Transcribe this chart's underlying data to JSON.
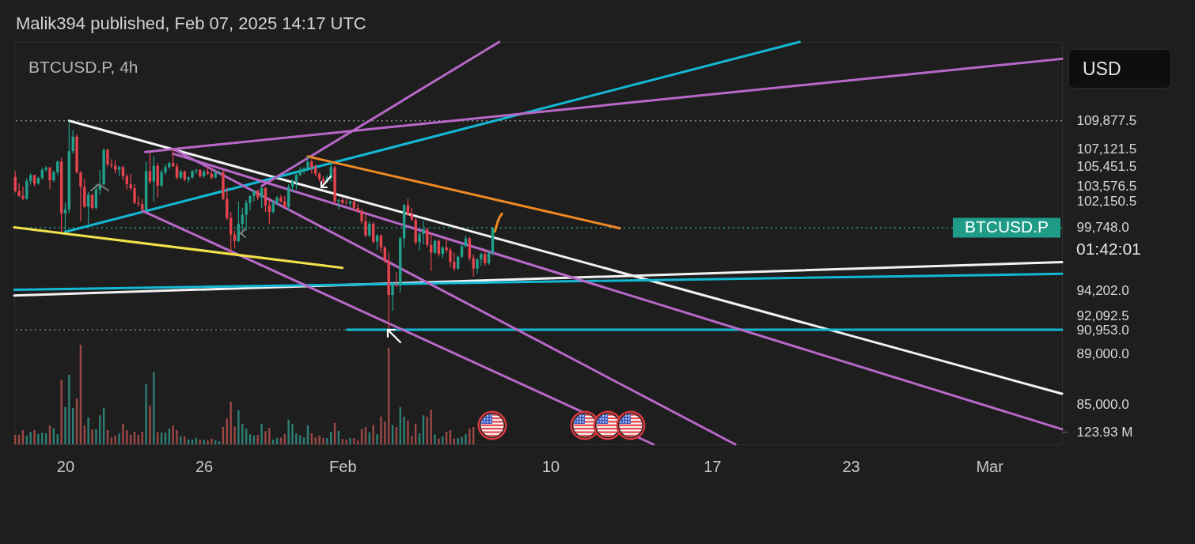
{
  "chart_data": {
    "type": "candlestick",
    "title": "BTCUSD.P, 4h",
    "annotations": [
      "Malik394 published, Feb 07, 2025 14:17 UTC",
      "USD",
      "01:42:01"
    ],
    "x": [
      "2025-01-17T20:00",
      "2025-01-18T00:00",
      "2025-01-18T04:00",
      "2025-01-18T08:00",
      "2025-01-18T12:00",
      "2025-01-18T16:00",
      "2025-01-18T20:00",
      "2025-01-19T00:00",
      "2025-01-19T04:00",
      "2025-01-19T08:00",
      "2025-01-19T12:00",
      "2025-01-19T16:00",
      "2025-01-19T20:00",
      "2025-01-20T00:00",
      "2025-01-20T04:00",
      "2025-01-20T08:00",
      "2025-01-20T12:00",
      "2025-01-20T16:00",
      "2025-01-20T20:00",
      "2025-01-21T00:00",
      "2025-01-21T04:00",
      "2025-01-21T08:00",
      "2025-01-21T12:00",
      "2025-01-21T16:00",
      "2025-01-21T20:00",
      "2025-01-22T00:00",
      "2025-01-22T04:00",
      "2025-01-22T08:00",
      "2025-01-22T12:00",
      "2025-01-22T16:00",
      "2025-01-22T20:00",
      "2025-01-23T00:00",
      "2025-01-23T04:00",
      "2025-01-23T08:00",
      "2025-01-23T12:00",
      "2025-01-23T16:00",
      "2025-01-23T20:00",
      "2025-01-24T00:00",
      "2025-01-24T04:00",
      "2025-01-24T08:00",
      "2025-01-24T12:00",
      "2025-01-24T16:00",
      "2025-01-24T20:00",
      "2025-01-25T00:00",
      "2025-01-25T04:00",
      "2025-01-25T08:00",
      "2025-01-25T12:00",
      "2025-01-25T16:00",
      "2025-01-25T20:00",
      "2025-01-26T00:00",
      "2025-01-26T04:00",
      "2025-01-26T08:00",
      "2025-01-26T12:00",
      "2025-01-26T16:00",
      "2025-01-26T20:00",
      "2025-01-27T00:00",
      "2025-01-27T04:00",
      "2025-01-27T08:00",
      "2025-01-27T12:00",
      "2025-01-27T16:00",
      "2025-01-27T20:00",
      "2025-01-28T00:00",
      "2025-01-28T04:00",
      "2025-01-28T08:00",
      "2025-01-28T12:00",
      "2025-01-28T16:00",
      "2025-01-28T20:00",
      "2025-01-29T00:00",
      "2025-01-29T04:00",
      "2025-01-29T08:00",
      "2025-01-29T12:00",
      "2025-01-29T16:00",
      "2025-01-29T20:00",
      "2025-01-30T00:00",
      "2025-01-30T04:00",
      "2025-01-30T08:00",
      "2025-01-30T12:00",
      "2025-01-30T16:00",
      "2025-01-30T20:00",
      "2025-01-31T00:00",
      "2025-01-31T04:00",
      "2025-01-31T08:00",
      "2025-01-31T12:00",
      "2025-01-31T16:00",
      "2025-01-31T20:00",
      "2025-02-01T00:00",
      "2025-02-01T04:00",
      "2025-02-01T08:00",
      "2025-02-01T12:00",
      "2025-02-01T16:00",
      "2025-02-01T20:00",
      "2025-02-02T00:00",
      "2025-02-02T04:00",
      "2025-02-02T08:00",
      "2025-02-02T12:00",
      "2025-02-02T16:00",
      "2025-02-02T20:00",
      "2025-02-03T00:00",
      "2025-02-03T04:00",
      "2025-02-03T08:00",
      "2025-02-03T12:00",
      "2025-02-03T16:00",
      "2025-02-03T20:00",
      "2025-02-04T00:00",
      "2025-02-04T04:00",
      "2025-02-04T08:00",
      "2025-02-04T12:00",
      "2025-02-04T16:00",
      "2025-02-04T20:00",
      "2025-02-05T00:00",
      "2025-02-05T04:00",
      "2025-02-05T08:00",
      "2025-02-05T12:00",
      "2025-02-05T16:00",
      "2025-02-05T20:00",
      "2025-02-06T00:00",
      "2025-02-06T04:00",
      "2025-02-06T08:00",
      "2025-02-06T12:00",
      "2025-02-06T16:00",
      "2025-02-06T20:00",
      "2025-02-07T00:00",
      "2025-02-07T04:00",
      "2025-02-07T08:00",
      "2025-02-07T12:00"
    ],
    "ohlc": [
      [
        104430,
        104980,
        102970,
        103130
      ],
      [
        103130,
        103860,
        102560,
        102650
      ],
      [
        102650,
        103540,
        102270,
        102400
      ],
      [
        102400,
        104330,
        102300,
        104050
      ],
      [
        104050,
        104770,
        103720,
        104600
      ],
      [
        104600,
        104650,
        103540,
        103800
      ],
      [
        103800,
        104470,
        103700,
        104350
      ],
      [
        104350,
        105320,
        104200,
        105100
      ],
      [
        105100,
        105460,
        104900,
        105300
      ],
      [
        105300,
        105400,
        103300,
        104120
      ],
      [
        104120,
        105040,
        103970,
        104900
      ],
      [
        104900,
        106000,
        104600,
        105880
      ],
      [
        105880,
        106260,
        99370,
        101050
      ],
      [
        101050,
        102020,
        99370,
        101420
      ],
      [
        101420,
        109877.5,
        101050,
        106900
      ],
      [
        106900,
        108960,
        106640,
        108310
      ],
      [
        108310,
        108570,
        104740,
        104870
      ],
      [
        104870,
        104990,
        100330,
        103500
      ],
      [
        103500,
        104250,
        101540,
        101660
      ],
      [
        101660,
        103010,
        100090,
        102760
      ],
      [
        102760,
        102880,
        101420,
        101540
      ],
      [
        101540,
        103750,
        101420,
        103250
      ],
      [
        103250,
        105120,
        102760,
        103750
      ],
      [
        103750,
        107150,
        103620,
        107020
      ],
      [
        107020,
        107150,
        105370,
        105630
      ],
      [
        105630,
        106130,
        105250,
        105500
      ],
      [
        105500,
        106010,
        104740,
        105120
      ],
      [
        105120,
        105500,
        104490,
        105370
      ],
      [
        105370,
        105500,
        104120,
        104490
      ],
      [
        104490,
        104740,
        103250,
        103750
      ],
      [
        103750,
        104740,
        103130,
        103380
      ],
      [
        103380,
        103750,
        101900,
        102020
      ],
      [
        102020,
        102640,
        101660,
        101900
      ],
      [
        101900,
        102390,
        101170,
        101420
      ],
      [
        101420,
        105880,
        101300,
        104990
      ],
      [
        104990,
        106770,
        103750,
        104000
      ],
      [
        104000,
        106390,
        102150,
        105500
      ],
      [
        105500,
        105750,
        102510,
        103620
      ],
      [
        103620,
        105120,
        103500,
        104870
      ],
      [
        104870,
        105630,
        104620,
        105370
      ],
      [
        105370,
        105880,
        105200,
        105750
      ],
      [
        105750,
        107121.5,
        105370,
        105450
      ],
      [
        105450,
        105750,
        104190,
        104370
      ],
      [
        104370,
        105120,
        104190,
        104950
      ],
      [
        104950,
        105050,
        104000,
        104190
      ],
      [
        104190,
        104490,
        103870,
        104370
      ],
      [
        104370,
        105120,
        104290,
        104990
      ],
      [
        104990,
        105200,
        104740,
        105090
      ],
      [
        105090,
        105200,
        104340,
        104490
      ],
      [
        104490,
        105120,
        104340,
        104940
      ],
      [
        104940,
        105370,
        104620,
        104740
      ],
      [
        104740,
        105250,
        104190,
        104370
      ],
      [
        104370,
        104990,
        104290,
        104840
      ],
      [
        104840,
        105040,
        104640,
        104890
      ],
      [
        104890,
        105040,
        102270,
        102390
      ],
      [
        102390,
        103500,
        100450,
        100620
      ],
      [
        100620,
        101170,
        97490,
        99140
      ],
      [
        99140,
        99490,
        97890,
        98540
      ],
      [
        98540,
        102150,
        98430,
        100090
      ],
      [
        100090,
        101540,
        99140,
        100930
      ],
      [
        100930,
        102270,
        99490,
        102020
      ],
      [
        102020,
        102760,
        101300,
        102640
      ],
      [
        102640,
        103250,
        102150,
        103130
      ],
      [
        103130,
        103250,
        102270,
        102510
      ],
      [
        102510,
        103576.5,
        101540,
        103380
      ],
      [
        103380,
        103500,
        101170,
        101780
      ],
      [
        101780,
        102390,
        100090,
        101170
      ],
      [
        101170,
        102270,
        101050,
        102020
      ],
      [
        102020,
        102640,
        101780,
        102510
      ],
      [
        102510,
        102760,
        102020,
        102150
      ],
      [
        102150,
        102640,
        101540,
        101660
      ],
      [
        101660,
        103750,
        101300,
        103500
      ],
      [
        103500,
        104240,
        103010,
        104000
      ],
      [
        104000,
        104740,
        103250,
        104620
      ],
      [
        104620,
        105370,
        104490,
        105120
      ],
      [
        105120,
        105370,
        104740,
        105250
      ],
      [
        105250,
        106390,
        104990,
        105880
      ],
      [
        105880,
        106130,
        104740,
        105370
      ],
      [
        105370,
        105630,
        104490,
        104740
      ],
      [
        104740,
        104870,
        104000,
        104240
      ],
      [
        104240,
        104490,
        103750,
        104000
      ],
      [
        104000,
        104620,
        103870,
        104370
      ],
      [
        104370,
        105880,
        104000,
        105370
      ],
      [
        105370,
        105500,
        101900,
        102150
      ],
      [
        102150,
        102390,
        101420,
        102270
      ],
      [
        102270,
        102510,
        101900,
        102020
      ],
      [
        102020,
        102390,
        101830,
        101970
      ],
      [
        101970,
        102240,
        101670,
        102140
      ],
      [
        102140,
        102240,
        101260,
        101550
      ],
      [
        101550,
        101920,
        101120,
        101260
      ],
      [
        101260,
        101430,
        100110,
        100350
      ],
      [
        100350,
        101070,
        98920,
        99040
      ],
      [
        99040,
        100350,
        98920,
        100110
      ],
      [
        100110,
        100230,
        98330,
        98500
      ],
      [
        98500,
        99200,
        97750,
        99040
      ],
      [
        99040,
        99160,
        97520,
        97980
      ],
      [
        97980,
        98100,
        96590,
        96820
      ],
      [
        96820,
        97520,
        90953,
        93860
      ],
      [
        93860,
        94990,
        92530,
        94760
      ],
      [
        94760,
        95790,
        94540,
        94650
      ],
      [
        94650,
        98920,
        94090,
        98800
      ],
      [
        98800,
        101920,
        97980,
        101800
      ],
      [
        101800,
        102410,
        100830,
        100950
      ],
      [
        100950,
        101550,
        100350,
        100470
      ],
      [
        100470,
        100590,
        98220,
        98450
      ],
      [
        98450,
        99400,
        97750,
        99160
      ],
      [
        99160,
        100350,
        98220,
        99630
      ],
      [
        99630,
        99750,
        97980,
        98220
      ],
      [
        98220,
        99280,
        95900,
        97520
      ],
      [
        97520,
        98690,
        97400,
        98570
      ],
      [
        98570,
        98690,
        97170,
        97400
      ],
      [
        97400,
        98100,
        97050,
        97980
      ],
      [
        97980,
        98800,
        97520,
        97750
      ],
      [
        97750,
        97980,
        96240,
        96700
      ],
      [
        96700,
        97520,
        95900,
        96130
      ],
      [
        96130,
        97280,
        96020,
        97170
      ],
      [
        97170,
        98330,
        97050,
        98100
      ],
      [
        98100,
        99040,
        97980,
        98800
      ],
      [
        98800,
        98920,
        96820,
        97050
      ],
      [
        97050,
        97400,
        95440,
        96130
      ],
      [
        96130,
        97050,
        95670,
        96930
      ],
      [
        96930,
        97520,
        96360,
        97400
      ],
      [
        97400,
        97750,
        96360,
        96590
      ],
      [
        96590,
        97630,
        96470,
        97520
      ],
      [
        97520,
        99800,
        97280,
        99748
      ]
    ],
    "colors": [
      "#e5444f",
      "#e5444f",
      "#e5444f",
      "#22a08c",
      "#22a08c",
      "#e5444f",
      "#22a08c",
      "#22a08c",
      "#22a08c",
      "#e5444f",
      "#22a08c",
      "#22a08c",
      "#e5444f",
      "#22a08c",
      "#22a08c",
      "#22a08c",
      "#e5444f",
      "#e5444f",
      "#e5444f",
      "#22a08c",
      "#e5444f",
      "#22a08c",
      "#22a08c",
      "#22a08c",
      "#e5444f",
      "#e5444f",
      "#e5444f",
      "#22a08c",
      "#e5444f",
      "#e5444f",
      "#e5444f",
      "#e5444f",
      "#e5444f",
      "#e5444f",
      "#22a08c",
      "#e5444f",
      "#22a08c",
      "#e5444f",
      "#22a08c",
      "#22a08c",
      "#22a08c",
      "#e5444f",
      "#e5444f",
      "#22a08c",
      "#e5444f",
      "#22a08c",
      "#22a08c",
      "#22a08c",
      "#e5444f",
      "#22a08c",
      "#e5444f",
      "#e5444f",
      "#22a08c",
      "#22a08c",
      "#e5444f",
      "#e5444f",
      "#e5444f",
      "#e5444f",
      "#22a08c",
      "#22a08c",
      "#22a08c",
      "#22a08c",
      "#22a08c",
      "#e5444f",
      "#22a08c",
      "#e5444f",
      "#e5444f",
      "#22a08c",
      "#22a08c",
      "#e5444f",
      "#e5444f",
      "#22a08c",
      "#22a08c",
      "#22a08c",
      "#22a08c",
      "#22a08c",
      "#22a08c",
      "#e5444f",
      "#e5444f",
      "#e5444f",
      "#e5444f",
      "#22a08c",
      "#22a08c",
      "#e5444f",
      "#22a08c",
      "#e5444f",
      "#e5444f",
      "#22a08c",
      "#e5444f",
      "#e5444f",
      "#e5444f",
      "#e5444f",
      "#22a08c",
      "#e5444f",
      "#22a08c",
      "#e5444f",
      "#e5444f",
      "#e5444f",
      "#22a08c",
      "#e5444f",
      "#22a08c",
      "#22a08c",
      "#e5444f",
      "#e5444f",
      "#e5444f",
      "#22a08c",
      "#22a08c",
      "#e5444f",
      "#e5444f",
      "#22a08c",
      "#e5444f",
      "#22a08c",
      "#e5444f",
      "#e5444f",
      "#e5444f",
      "#22a08c",
      "#22a08c",
      "#22a08c",
      "#e5444f",
      "#e5444f",
      "#22a08c",
      "#22a08c",
      "#e5444f",
      "#22a08c",
      "#22a08c"
    ],
    "series": [
      {
        "type": "bar",
        "axis": "y2",
        "values": [
          93,
          93,
          140,
          87,
          124,
          140,
          102,
          115,
          109,
          186,
          161,
          99,
          636,
          366,
          682,
          357,
          450,
          977,
          186,
          264,
          146,
          149,
          285,
          357,
          140,
          68,
          87,
          109,
          202,
          140,
          93,
          124,
          93,
          124,
          589,
          378,
          707,
          118,
          115,
          115,
          155,
          186,
          140,
          78,
          78,
          47,
          47,
          62,
          47,
          47,
          37,
          56,
          40,
          31,
          171,
          254,
          419,
          177,
          335,
          202,
          155,
          99,
          87,
          93,
          202,
          130,
          161,
          47,
          62,
          68,
          102,
          242,
          202,
          109,
          93,
          68,
          186,
          109,
          68,
          87,
          62,
          62,
          124,
          211,
          133,
          53,
          47,
          62,
          62,
          37,
          149,
          171,
          118,
          192,
          99,
          273,
          223,
          946,
          192,
          171,
          366,
          270,
          233,
          87,
          202,
          109,
          285,
          273,
          341,
          99,
          56,
          78,
          124,
          140,
          56,
          62,
          74,
          99,
          155,
          171,
          null,
          null,
          null,
          null,
          null
        ],
        "colors": [
          "#9b4946",
          "#9b4946",
          "#9b4946",
          "#2e7f74",
          "#2e7f74",
          "#9b4946",
          "#2e7f74",
          "#2e7f74",
          "#2e7f74",
          "#9b4946",
          "#2e7f74",
          "#2e7f74",
          "#9b4946",
          "#2e7f74",
          "#2e7f74",
          "#2e7f74",
          "#9b4946",
          "#9b4946",
          "#9b4946",
          "#2e7f74",
          "#9b4946",
          "#2e7f74",
          "#2e7f74",
          "#2e7f74",
          "#9b4946",
          "#9b4946",
          "#9b4946",
          "#2e7f74",
          "#9b4946",
          "#9b4946",
          "#9b4946",
          "#9b4946",
          "#9b4946",
          "#9b4946",
          "#2e7f74",
          "#9b4946",
          "#2e7f74",
          "#9b4946",
          "#2e7f74",
          "#2e7f74",
          "#2e7f74",
          "#9b4946",
          "#9b4946",
          "#2e7f74",
          "#9b4946",
          "#2e7f74",
          "#2e7f74",
          "#2e7f74",
          "#9b4946",
          "#2e7f74",
          "#9b4946",
          "#9b4946",
          "#2e7f74",
          "#2e7f74",
          "#9b4946",
          "#9b4946",
          "#9b4946",
          "#9b4946",
          "#2e7f74",
          "#2e7f74",
          "#2e7f74",
          "#2e7f74",
          "#2e7f74",
          "#9b4946",
          "#2e7f74",
          "#9b4946",
          "#9b4946",
          "#2e7f74",
          "#2e7f74",
          "#9b4946",
          "#9b4946",
          "#2e7f74",
          "#2e7f74",
          "#2e7f74",
          "#2e7f74",
          "#2e7f74",
          "#2e7f74",
          "#9b4946",
          "#9b4946",
          "#9b4946",
          "#9b4946",
          "#2e7f74",
          "#2e7f74",
          "#9b4946",
          "#2e7f74",
          "#9b4946",
          "#9b4946",
          "#2e7f74",
          "#9b4946",
          "#9b4946",
          "#9b4946",
          "#9b4946",
          "#2e7f74",
          "#9b4946",
          "#2e7f74",
          "#9b4946",
          "#9b4946",
          "#9b4946",
          "#2e7f74",
          "#9b4946",
          "#2e7f74",
          "#2e7f74",
          "#9b4946",
          "#9b4946",
          "#9b4946",
          "#2e7f74",
          "#2e7f74",
          "#9b4946",
          "#9b4946",
          "#2e7f74",
          "#9b4946",
          "#2e7f74",
          "#9b4946",
          "#9b4946",
          "#9b4946",
          "#2e7f74",
          "#2e7f74",
          "#2e7f74",
          "#9b4946",
          "#9b4946",
          "#2e7f74",
          "#2e7f74",
          "#9b4946",
          "#2e7f74",
          "#2e7f74"
        ]
      },
      {
        "type": "line",
        "color": "#f2f2f2",
        "x": [
          "2025-01-20T04:00",
          "2025-03-04T03:30"
        ],
        "values": [
          109877.5,
          85840
        ]
      },
      {
        "type": "line",
        "color": "#f2f2f2",
        "x": [
          "2025-01-17T19:00",
          "2025-03-04T03:30"
        ],
        "values": [
          93820,
          96700
        ]
      },
      {
        "type": "line",
        "color": "#12b9d4",
        "x": [
          "2025-01-17T19:00",
          "2025-03-04T03:30"
        ],
        "values": [
          94310,
          95670
        ]
      },
      {
        "type": "line",
        "color": "#12b9d4",
        "x": [
          "2025-01-20T00:00",
          "2025-02-20T18:50"
        ],
        "values": [
          99370,
          118000
        ]
      },
      {
        "type": "line",
        "color": "#12b9d4",
        "x": [
          "2025-02-01T04:30",
          "2025-03-04T03:30"
        ],
        "values": [
          90953,
          90953
        ]
      },
      {
        "type": "line",
        "color": "#b868c8",
        "x": [
          "2025-01-23T11:00",
          "2025-03-04T03:30"
        ],
        "values": [
          106820,
          116210
        ]
      },
      {
        "type": "line",
        "color": "#b868c8",
        "x": [
          "2025-01-28T12:00",
          "2025-02-07T18:50"
        ],
        "values": [
          103576.5,
          118000
        ]
      },
      {
        "type": "line",
        "color": "#b868c8",
        "x": [
          "2025-01-24T16:00",
          "2025-03-04T03:30"
        ],
        "values": [
          106650,
          83130
        ]
      },
      {
        "type": "line",
        "color": "#b868c8",
        "x": [
          "2025-01-24T16:00",
          "2025-02-18T00:00"
        ],
        "values": [
          107121.5,
          82000
        ]
      },
      {
        "type": "line",
        "color": "#b868c8",
        "x": [
          "2025-01-23T08:00",
          "2025-02-14T11:00"
        ],
        "values": [
          101290,
          82000
        ]
      },
      {
        "type": "line",
        "color": "#f2e14c",
        "x": [
          "2025-01-17T19:00",
          "2025-02-01T00:00"
        ],
        "values": [
          99780,
          96200
        ]
      },
      {
        "type": "line",
        "color": "#f08a24",
        "x": [
          "2025-01-30T12:00",
          "2025-02-13T00:00"
        ],
        "values": [
          106390,
          99700
        ]
      },
      {
        "type": "line",
        "color": "#f08a24",
        "x": [
          "2025-02-07T14:20",
          "2025-02-07T17:00",
          "2025-02-07T19:10",
          "2025-02-07T21:40"
        ],
        "values": [
          99400,
          100230,
          100710,
          101020
        ]
      }
    ],
    "xlim": [
      "2025-01-17T19:00",
      "2025-03-04T03:30"
    ],
    "xticks": [
      {
        "value": "2025-01-20",
        "label": "20"
      },
      {
        "value": "2025-01-26",
        "label": "26"
      },
      {
        "value": "2025-02-01",
        "label": "Feb"
      },
      {
        "value": "2025-02-10",
        "label": "10"
      },
      {
        "value": "2025-02-17",
        "label": "17"
      },
      {
        "value": "2025-02-23",
        "label": "23"
      },
      {
        "value": "2025-03-01",
        "label": "Mar"
      }
    ],
    "ylim": [
      82000,
      118000
    ],
    "yticks": [
      {
        "value": 85000,
        "label": "85,000.0"
      },
      {
        "value": 89000,
        "label": "89,000.0"
      },
      {
        "value": 90953,
        "label": "90,953.0"
      },
      {
        "value": 92092.5,
        "label": "92,092.5"
      },
      {
        "value": 94202,
        "label": "94,202.0"
      },
      {
        "value": 99748,
        "label": "99,748.0"
      },
      {
        "value": 102150.5,
        "label": "102,150.5"
      },
      {
        "value": 103576.5,
        "label": "103,576.5"
      },
      {
        "value": 105451.5,
        "label": "105,451.5"
      },
      {
        "value": 107121.5,
        "label": "107,121.5"
      },
      {
        "value": 109877.5,
        "label": "109,877.5"
      }
    ],
    "y2lim": [
      0,
      3950
    ],
    "y2ticks": [
      {
        "value": 123.93,
        "label": "123.93 M"
      }
    ],
    "log": "y",
    "ref_lines": [
      {
        "axis": "y",
        "value": 109877.5,
        "color": "#8a8a8a",
        "line_style": "dotted"
      },
      {
        "axis": "y",
        "value": 99748,
        "label": "BTCUSD.P",
        "color": "#1e9c88",
        "line_style": "dotted"
      },
      {
        "axis": "y",
        "value": 90953,
        "color": "#8a8a8a",
        "line_style": "dotted"
      }
    ]
  }
}
